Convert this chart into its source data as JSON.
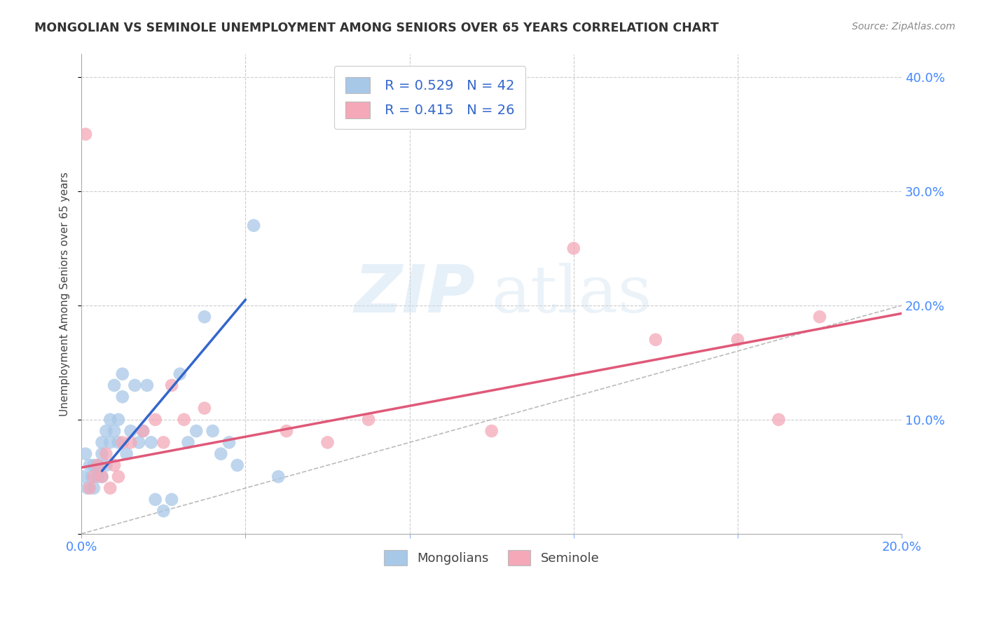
{
  "title": "MONGOLIAN VS SEMINOLE UNEMPLOYMENT AMONG SENIORS OVER 65 YEARS CORRELATION CHART",
  "source": "Source: ZipAtlas.com",
  "ylabel_label": "Unemployment Among Seniors over 65 years",
  "xlim": [
    0.0,
    0.2
  ],
  "ylim": [
    0.0,
    0.42
  ],
  "mongolian_R": 0.529,
  "mongolian_N": 42,
  "seminole_R": 0.415,
  "seminole_N": 26,
  "mongolian_color": "#a8c8e8",
  "seminole_color": "#f4a8b8",
  "mongolian_line_color": "#3366cc",
  "seminole_line_color": "#e05878",
  "diagonal_color": "#bbbbbb",
  "watermark_zip": "ZIP",
  "watermark_atlas": "atlas",
  "mongolian_x": [
    0.0005,
    0.001,
    0.0015,
    0.002,
    0.0025,
    0.003,
    0.003,
    0.004,
    0.004,
    0.005,
    0.005,
    0.005,
    0.006,
    0.006,
    0.007,
    0.007,
    0.008,
    0.008,
    0.009,
    0.009,
    0.01,
    0.01,
    0.011,
    0.012,
    0.013,
    0.014,
    0.015,
    0.016,
    0.017,
    0.018,
    0.02,
    0.022,
    0.024,
    0.026,
    0.028,
    0.03,
    0.032,
    0.034,
    0.036,
    0.038,
    0.042,
    0.048
  ],
  "mongolian_y": [
    0.05,
    0.07,
    0.04,
    0.06,
    0.05,
    0.04,
    0.06,
    0.05,
    0.06,
    0.07,
    0.08,
    0.05,
    0.09,
    0.06,
    0.1,
    0.08,
    0.09,
    0.13,
    0.08,
    0.1,
    0.12,
    0.14,
    0.07,
    0.09,
    0.13,
    0.08,
    0.09,
    0.13,
    0.08,
    0.03,
    0.02,
    0.03,
    0.14,
    0.08,
    0.09,
    0.19,
    0.09,
    0.07,
    0.08,
    0.06,
    0.27,
    0.05
  ],
  "seminole_x": [
    0.001,
    0.002,
    0.003,
    0.004,
    0.005,
    0.006,
    0.007,
    0.008,
    0.009,
    0.01,
    0.012,
    0.015,
    0.018,
    0.02,
    0.022,
    0.025,
    0.03,
    0.05,
    0.06,
    0.07,
    0.1,
    0.12,
    0.14,
    0.16,
    0.17,
    0.18
  ],
  "seminole_y": [
    0.35,
    0.04,
    0.05,
    0.06,
    0.05,
    0.07,
    0.04,
    0.06,
    0.05,
    0.08,
    0.08,
    0.09,
    0.1,
    0.08,
    0.13,
    0.1,
    0.11,
    0.09,
    0.08,
    0.1,
    0.09,
    0.25,
    0.17,
    0.17,
    0.1,
    0.19
  ],
  "mongolian_line_x": [
    0.005,
    0.04
  ],
  "mongolian_line_y": [
    0.055,
    0.205
  ],
  "seminole_line_x": [
    0.0,
    0.2
  ],
  "seminole_line_y": [
    0.058,
    0.193
  ]
}
